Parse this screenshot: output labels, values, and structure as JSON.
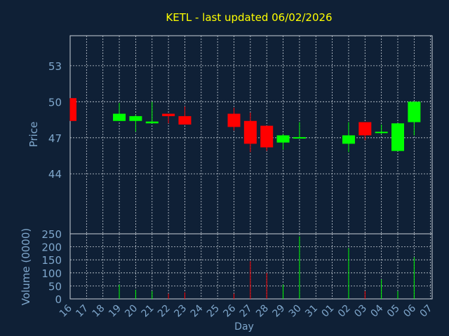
{
  "chart_data": {
    "type": "candlestick",
    "title": "KETL - last updated 06/02/2026",
    "xlabel": "Day",
    "price_panel": {
      "ylabel": "Price",
      "ylim": [
        39.0,
        55.5
      ],
      "yticks": [
        44,
        47,
        50,
        53
      ],
      "grid": true
    },
    "volume_panel": {
      "ylabel": "Volume (0000)",
      "ylim": [
        0,
        250
      ],
      "yticks": [
        0,
        50,
        100,
        150,
        200,
        250
      ],
      "grid": true
    },
    "x_tick_labels": [
      "16",
      "17",
      "18",
      "19",
      "20",
      "21",
      "22",
      "23",
      "24",
      "25",
      "26",
      "27",
      "28",
      "29",
      "30",
      "31",
      "01",
      "02",
      "03",
      "04",
      "05",
      "06",
      "07"
    ],
    "candles": [
      {
        "day": "16",
        "open": 50.3,
        "close": 48.4,
        "high": 50.3,
        "low": 48.4,
        "volume": 0
      },
      {
        "day": "19",
        "open": 48.4,
        "close": 49.0,
        "high": 49.9,
        "low": 48.4,
        "volume": 55
      },
      {
        "day": "20",
        "open": 48.4,
        "close": 48.8,
        "high": 48.9,
        "low": 47.5,
        "volume": 35
      },
      {
        "day": "21",
        "open": 48.2,
        "close": 48.35,
        "high": 50.0,
        "low": 48.2,
        "volume": 30
      },
      {
        "day": "22",
        "open": 49.0,
        "close": 48.8,
        "high": 49.0,
        "low": 48.2,
        "volume": 20
      },
      {
        "day": "23",
        "open": 48.8,
        "close": 48.1,
        "high": 49.6,
        "low": 48.1,
        "volume": 25
      },
      {
        "day": "26",
        "open": 49.0,
        "close": 47.9,
        "high": 49.5,
        "low": 47.6,
        "volume": 20
      },
      {
        "day": "27",
        "open": 48.4,
        "close": 46.5,
        "high": 49.1,
        "low": 45.8,
        "volume": 145
      },
      {
        "day": "28",
        "open": 48.0,
        "close": 46.2,
        "high": 48.0,
        "low": 45.9,
        "volume": 100
      },
      {
        "day": "29",
        "open": 46.6,
        "close": 47.2,
        "high": 47.3,
        "low": 46.0,
        "volume": 55
      },
      {
        "day": "30",
        "open": 47.0,
        "close": 47.05,
        "high": 48.3,
        "low": 47.0,
        "volume": 240
      },
      {
        "day": "02",
        "open": 46.5,
        "close": 47.2,
        "high": 48.3,
        "low": 45.8,
        "volume": 195
      },
      {
        "day": "03",
        "open": 48.3,
        "close": 47.2,
        "high": 48.3,
        "low": 46.8,
        "volume": 30
      },
      {
        "day": "04",
        "open": 47.4,
        "close": 47.5,
        "high": 48.1,
        "low": 47.3,
        "volume": 75
      },
      {
        "day": "05",
        "open": 45.9,
        "close": 48.2,
        "high": 48.2,
        "low": 45.9,
        "volume": 30
      },
      {
        "day": "06",
        "open": 48.3,
        "close": 50.0,
        "high": 50.0,
        "low": 47.2,
        "volume": 160
      }
    ],
    "up_color": "#00ff00",
    "down_color": "#ff0000",
    "background": "#0f2036",
    "text_color": "#7fa7cc",
    "title_color": "#ffff00"
  }
}
